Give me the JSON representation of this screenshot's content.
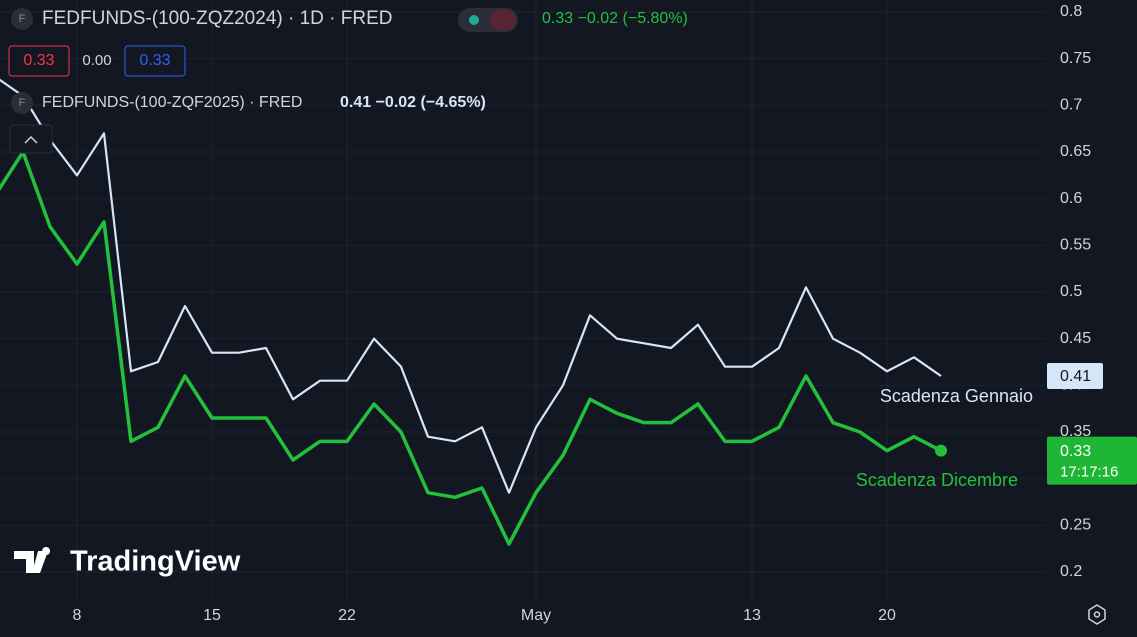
{
  "chart_data": {
    "type": "line",
    "header": {
      "icon_letter": "F",
      "symbol": "FEDFUNDS-(100-ZQZ2024) · 1D · FRED",
      "quote": "0.33 −0.02 (−5.80%)",
      "sell": "0.33",
      "spread": "0.00",
      "buy": "0.33"
    },
    "header2": {
      "icon_letter": "F",
      "symbol": "FEDFUNDS-(100-ZQF2025) · FRED",
      "quote": "0.41 −0.02 (−4.65%)"
    },
    "logo": "TradingView",
    "categories": [
      null,
      null,
      null,
      "8",
      null,
      null,
      null,
      null,
      "15",
      null,
      null,
      null,
      null,
      "22",
      null,
      null,
      null,
      null,
      null,
      null,
      "May",
      null,
      null,
      null,
      null,
      null,
      null,
      null,
      "13",
      null,
      null,
      null,
      null,
      "20",
      null,
      null
    ],
    "series": [
      {
        "name": "Scadenza Dicembre",
        "color": "#22c03c",
        "last_label": "0.33",
        "countdown": "17:17:16",
        "values": [
          0.605,
          0.65,
          0.57,
          0.53,
          0.575,
          0.34,
          0.355,
          0.41,
          0.365,
          0.365,
          0.365,
          0.32,
          0.34,
          0.34,
          0.38,
          0.35,
          0.285,
          0.28,
          0.29,
          0.23,
          0.285,
          0.325,
          0.385,
          0.37,
          0.36,
          0.36,
          0.38,
          0.34,
          0.34,
          0.355,
          0.41,
          0.36,
          0.35,
          0.33,
          0.345,
          0.33
        ]
      },
      {
        "name": "Scadenza Gennaio",
        "color": "#d4e6f7",
        "last_label": "0.41",
        "values": [
          0.73,
          0.71,
          0.663,
          0.625,
          0.67,
          0.415,
          0.425,
          0.485,
          0.435,
          0.435,
          0.44,
          0.385,
          0.405,
          0.405,
          0.45,
          0.42,
          0.345,
          0.34,
          0.355,
          0.285,
          0.355,
          0.4,
          0.475,
          0.45,
          0.445,
          0.44,
          0.465,
          0.42,
          0.42,
          0.44,
          0.505,
          0.45,
          0.435,
          0.415,
          0.43,
          0.41
        ]
      }
    ],
    "ylim": [
      0.2,
      0.8
    ],
    "yticks": [
      0.2,
      0.25,
      0.3,
      0.35,
      0.4,
      0.45,
      0.5,
      0.55,
      0.6,
      0.65,
      0.7,
      0.75,
      0.8
    ],
    "grid": true
  }
}
